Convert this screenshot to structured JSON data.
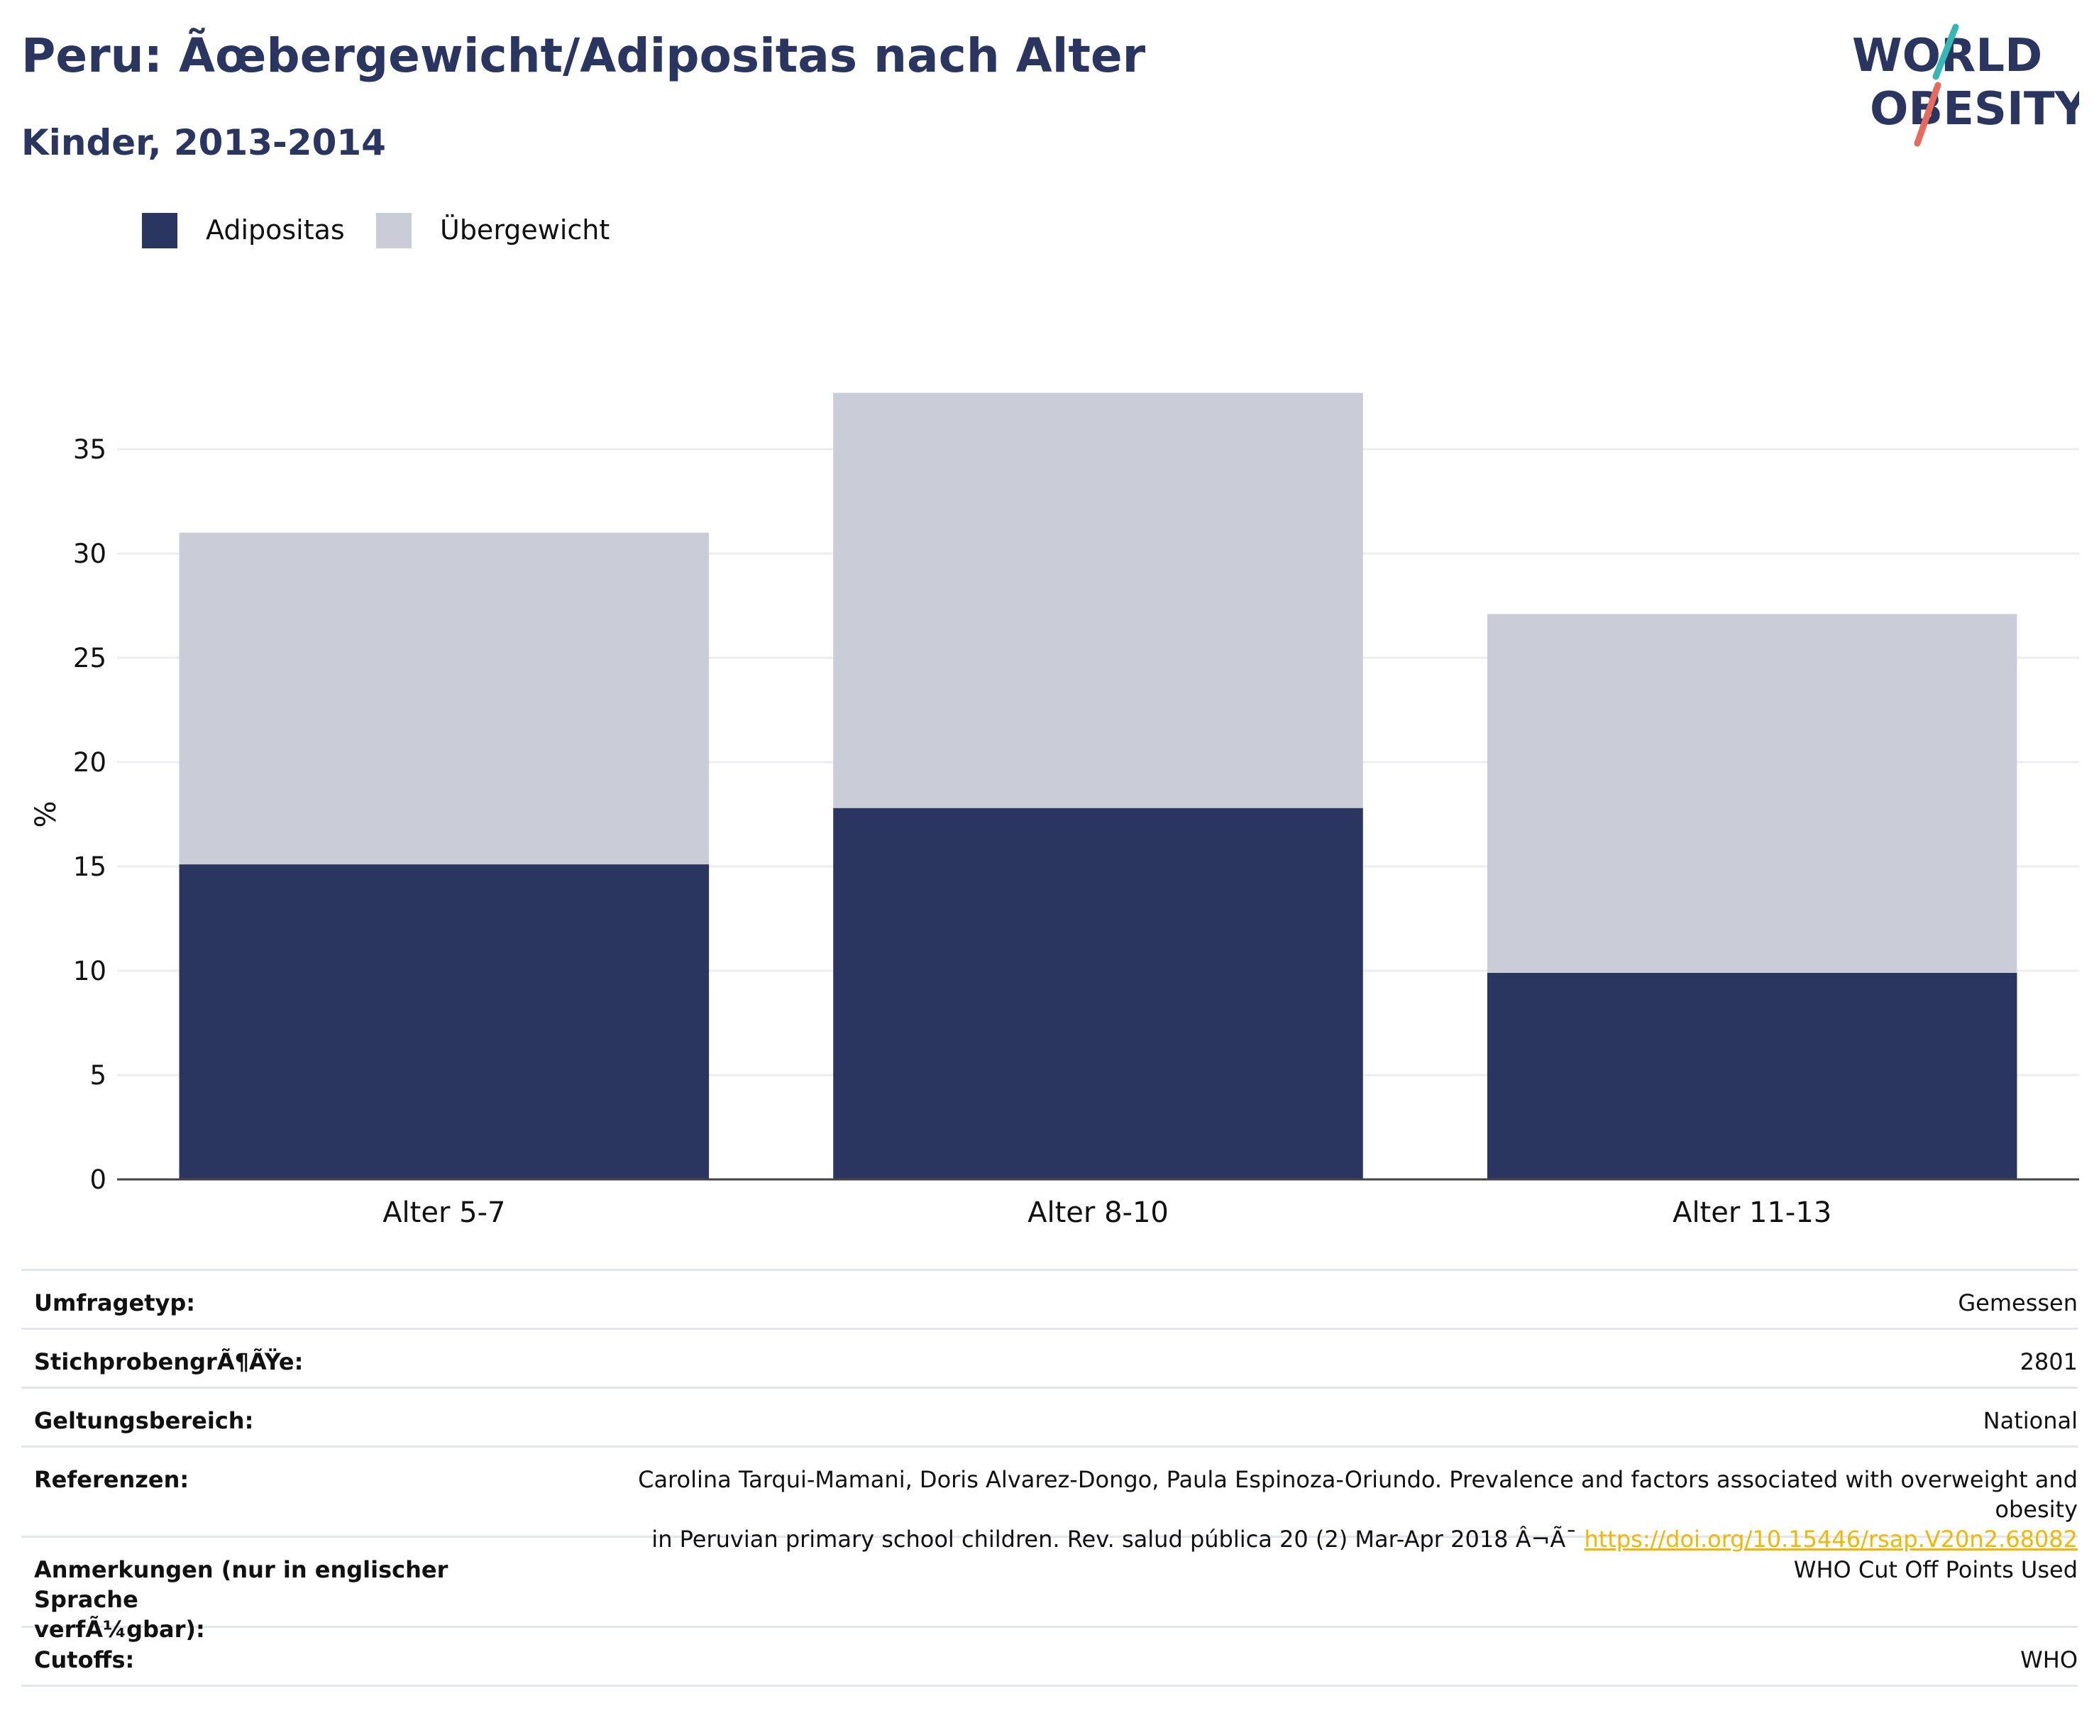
{
  "header": {
    "title": "Peru: Ãœbergewicht/Adipositas nach Alter",
    "subtitle": "Kinder, 2013-2014"
  },
  "logo": {
    "line1": "WORLD",
    "line2": "OBESITY"
  },
  "colors": {
    "adipositas": "#2a365f",
    "uebergewicht": "#caccd8",
    "accent_teal": "#35b8b3",
    "accent_red": "#e66a5d",
    "link": "#f2b705"
  },
  "legend": [
    {
      "label": "Adipositas",
      "color": "#2a365f"
    },
    {
      "label": "Übergewicht",
      "color": "#caccd8"
    }
  ],
  "chart_data": {
    "type": "bar",
    "stacked": true,
    "categories": [
      "Alter 5-7",
      "Alter 8-10",
      "Alter 11-13"
    ],
    "series": [
      {
        "name": "Adipositas",
        "values": [
          15.1,
          17.8,
          9.9
        ]
      },
      {
        "name": "Übergewicht",
        "values": [
          15.9,
          19.9,
          17.2
        ]
      }
    ],
    "ylabel": "%",
    "xlabel": "",
    "ylim": [
      0,
      40
    ],
    "yticks": [
      "0",
      "5",
      "10",
      "15",
      "20",
      "25",
      "30",
      "35"
    ],
    "grid": true,
    "legend_position": "top-left"
  },
  "info": {
    "survey_label": "Umfragetyp:",
    "survey_value": "Gemessen",
    "sample_label": "StichprobengrÃ¶ÃŸe:",
    "sample_value": "2801",
    "scope_label": "Geltungsbereich:",
    "scope_value": "National",
    "ref_label": "Referenzen:",
    "ref_line1": "Carolina Tarqui-Mamani, Doris Alvarez-Dongo, Paula Espinoza-Oriundo. Prevalence and factors associated with overweight and obesity",
    "ref_line2": "in Peruvian primary school children. Rev. salud pública 20 (2) Mar-Apr 2018 Â¬Ã¯ ",
    "ref_link": "https://doi.org/10.15446/rsap.V20n2.68082",
    "notes_label_line1": "Anmerkungen (nur in englischer Sprache",
    "notes_label_line2": "verfÃ¼gbar):",
    "notes_value": "WHO Cut Off Points Used",
    "cutoffs_label": "Cutoffs:",
    "cutoffs_value": "WHO"
  }
}
